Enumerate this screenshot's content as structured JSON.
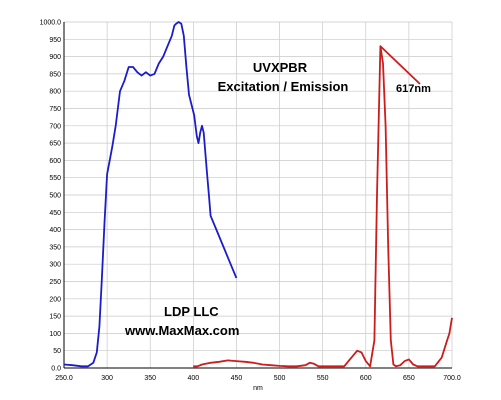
{
  "chart_data": {
    "type": "line",
    "title": "UVXPBR",
    "subtitle": "Excitation / Emission",
    "xlabel": "nm",
    "ylabel": "",
    "xlim": [
      250,
      700
    ],
    "ylim": [
      0,
      1000
    ],
    "grid": true,
    "x_ticks": [
      250,
      300,
      350,
      400,
      450,
      500,
      550,
      600,
      650,
      700
    ],
    "x_tick_labels": [
      "250.0",
      "300",
      "350",
      "400",
      "450",
      "500",
      "550",
      "600",
      "650",
      "700.0"
    ],
    "y_ticks": [
      0,
      50,
      100,
      150,
      200,
      250,
      300,
      350,
      400,
      450,
      500,
      550,
      600,
      650,
      700,
      750,
      800,
      850,
      900,
      950,
      1000
    ],
    "y_tick_labels": [
      "0.0",
      "50",
      "100",
      "150",
      "200",
      "250",
      "300",
      "350",
      "400",
      "450",
      "500",
      "550",
      "600",
      "650",
      "700",
      "750",
      "800",
      "850",
      "900",
      "950",
      "1000.0"
    ],
    "annotations": {
      "peak_label": "617nm",
      "company": "LDP LLC",
      "website": "www.MaxMax.com"
    },
    "series": [
      {
        "color": "#1c1ccc",
        "x": [
          250,
          260,
          270,
          278,
          284,
          288,
          291,
          294,
          297,
          300,
          303,
          306,
          310,
          315,
          320,
          325,
          330,
          335,
          340,
          345,
          350,
          355,
          360,
          365,
          370,
          375,
          378,
          380,
          383,
          386,
          389,
          392,
          395,
          398,
          401,
          404,
          406,
          408,
          410,
          412,
          414,
          416,
          418,
          420,
          425,
          430,
          435,
          440,
          445,
          450
        ],
        "values": [
          10,
          8,
          5,
          5,
          15,
          45,
          120,
          260,
          420,
          560,
          600,
          640,
          700,
          800,
          830,
          870,
          870,
          855,
          845,
          855,
          845,
          850,
          880,
          900,
          930,
          960,
          990,
          995,
          1000,
          995,
          960,
          870,
          790,
          760,
          730,
          670,
          650,
          680,
          700,
          680,
          620,
          560,
          500,
          440,
          410,
          380,
          350,
          320,
          290,
          260
        ]
      },
      {
        "color": "#cc1c1c",
        "x": [
          400,
          405,
          410,
          420,
          430,
          440,
          450,
          460,
          470,
          480,
          490,
          500,
          510,
          520,
          530,
          535,
          540,
          545,
          550,
          560,
          570,
          575,
          580,
          585,
          590,
          595,
          600,
          605,
          610,
          613,
          617,
          620,
          623,
          626,
          629,
          632,
          635,
          640,
          645,
          650,
          655,
          660,
          670,
          680,
          688,
          693,
          697,
          700
        ],
        "values": [
          5,
          5,
          10,
          15,
          18,
          22,
          20,
          18,
          15,
          10,
          8,
          6,
          5,
          5,
          8,
          15,
          12,
          5,
          5,
          5,
          5,
          5,
          20,
          35,
          50,
          45,
          20,
          5,
          80,
          500,
          930,
          880,
          700,
          350,
          80,
          10,
          5,
          8,
          20,
          25,
          10,
          5,
          5,
          5,
          30,
          70,
          100,
          145
        ]
      }
    ]
  }
}
